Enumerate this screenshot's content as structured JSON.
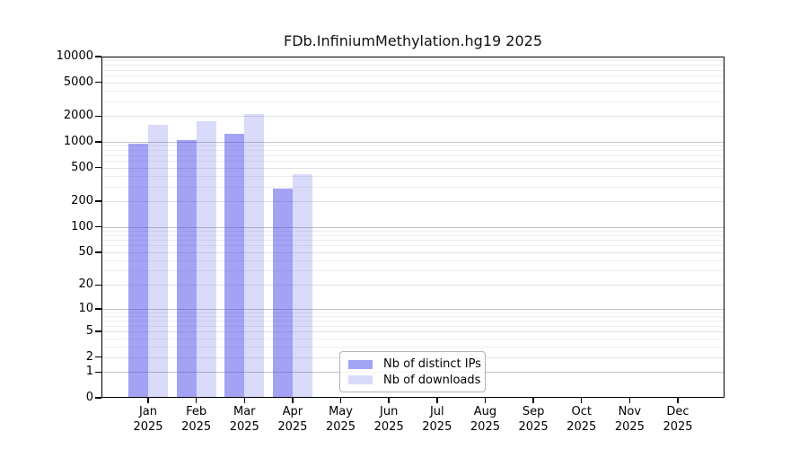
{
  "page": {
    "background": "#ffffff"
  },
  "chart_data": {
    "type": "bar",
    "title": "FDb.InfiniumMethylation.hg19 2025",
    "categories": [
      "Jan 2025",
      "Feb 2025",
      "Mar 2025",
      "Apr 2025",
      "May 2025",
      "Jun 2025",
      "Jul 2025",
      "Aug 2025",
      "Sep 2025",
      "Oct 2025",
      "Nov 2025",
      "Dec 2025"
    ],
    "series": [
      {
        "name": "Nb of distinct IPs",
        "color": "#3C3CEB78",
        "values": [
          950,
          1050,
          1250,
          280,
          null,
          null,
          null,
          null,
          null,
          null,
          null,
          null
        ]
      },
      {
        "name": "Nb of downloads",
        "color": "#3C3CEB30",
        "values": [
          1600,
          1750,
          2100,
          420,
          null,
          null,
          null,
          null,
          null,
          null,
          null,
          null
        ]
      }
    ],
    "xlabel": "",
    "ylabel": "",
    "yscale": "log1p",
    "ylim": [
      0,
      10000
    ],
    "yticks": [
      0,
      1,
      2,
      5,
      10,
      20,
      50,
      100,
      200,
      500,
      1000,
      2000,
      5000,
      10000
    ],
    "gridlines": {
      "major": [
        1,
        10,
        100,
        1000
      ],
      "mid": [
        2,
        5,
        20,
        50,
        200,
        500,
        2000,
        5000
      ],
      "minor": [
        3,
        4,
        6,
        7,
        8,
        9,
        30,
        40,
        60,
        70,
        80,
        90,
        300,
        400,
        600,
        700,
        800,
        900,
        3000,
        4000,
        6000,
        7000,
        8000,
        9000
      ]
    },
    "grid": true,
    "legend_position": "inside-bottom-center"
  }
}
